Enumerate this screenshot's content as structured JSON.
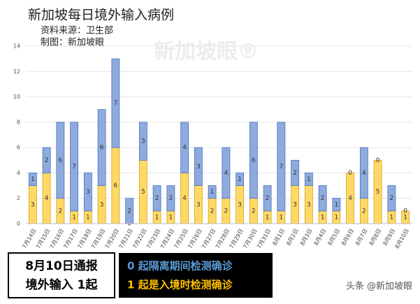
{
  "chart_data": {
    "type": "stacked-bar",
    "title": "新加坡每日境外输入病例",
    "subtitle": [
      "资料来源：卫生部",
      "制图：新加坡眼"
    ],
    "categories": [
      "7月14日",
      "7月15日",
      "7月16日",
      "7月17日",
      "7月18日",
      "7月19日",
      "7月20日",
      "7月21日",
      "7月22日",
      "7月23日",
      "7月24日",
      "7月25日",
      "7月26日",
      "7月27日",
      "7月28日",
      "7月29日",
      "7月30日",
      "7月31日",
      "8月1日",
      "8月2日",
      "8月3日",
      "8月4日",
      "8月5日",
      "8月6日",
      "8月7日",
      "8月8日",
      "8月9日",
      "8月10日"
    ],
    "series": [
      {
        "color": "#ffd966",
        "values": [
          3,
          4,
          2,
          1,
          1,
          3,
          6,
          0,
          5,
          1,
          1,
          4,
          3,
          2,
          2,
          3,
          2,
          1,
          1,
          3,
          3,
          1,
          1,
          4,
          2,
          5,
          1,
          1
        ]
      },
      {
        "color": "#8faadc",
        "values": [
          1,
          2,
          6,
          7,
          3,
          6,
          7,
          2,
          3,
          2,
          2,
          4,
          3,
          1,
          4,
          1,
          6,
          2,
          7,
          2,
          1,
          2,
          1,
          0,
          4,
          0,
          2,
          0
        ]
      }
    ],
    "ylim": [
      0,
      14
    ],
    "yticks": [
      0,
      2,
      4,
      6,
      8,
      10,
      12,
      14
    ],
    "grid": true,
    "annotations": {
      "box_left": [
        "8月10日通报",
        "境外输入 1起"
      ],
      "box_right": [
        "0 起隔离期间检测确诊",
        "1 起是入境时检测确诊"
      ],
      "watermark": "新加坡眼®",
      "credit": "头条 @新加坡眼"
    }
  }
}
